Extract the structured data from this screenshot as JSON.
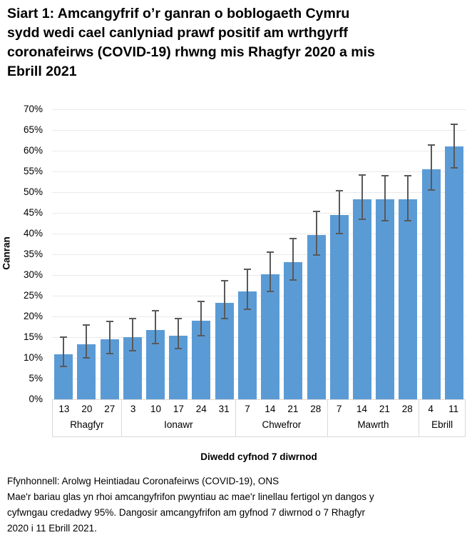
{
  "title": "Siart 1: Amcangyfrif o’r ganran o boblogaeth Cymru\nsydd wedi cael canlyniad prawf positif am wrthgyrff\ncoronafeirws (COVID-19) rhwng mis Rhagfyr 2020 a mis\nEbrill 2021",
  "y_axis": {
    "label": "Canran"
  },
  "x_axis": {
    "title": "Diwedd cyfnod 7 diwrnod"
  },
  "footer": {
    "source": "Ffynhonnell: Arolwg Heintiadau Coronafeirws (COVID-19), ONS",
    "note": "Mae'r bariau glas yn rhoi amcangyfrifon pwyntiau ac mae'r linellau fertigol yn dangos y\ncyfwngau credadwy 95%. Dangosir amcangyfrifon am gyfnod 7 diwrnod o 7 Rhagfyr\n2020 i 11 Ebrill 2021."
  },
  "chart_data": {
    "type": "bar",
    "title": "Siart 1: Amcangyfrif o’r ganran o boblogaeth Cymru sydd wedi cael canlyniad prawf positif am wrthgyrff coronafeirws (COVID-19) rhwng mis Rhagfyr 2020 a mis Ebrill 2021",
    "xlabel": "Diwedd cyfnod 7 diwrnod",
    "ylabel": "Canran",
    "ylim": [
      0,
      70
    ],
    "ytick_step": 5,
    "ytick_suffix": "%",
    "grid": true,
    "legend": "none",
    "bar_color": "#5b9bd5",
    "error_bar_color": "#595959",
    "error_bars": "95% credible intervals",
    "groups": [
      {
        "month": "Rhagfyr",
        "days": [
          "13",
          "20",
          "27"
        ]
      },
      {
        "month": "Ionawr",
        "days": [
          "3",
          "10",
          "17",
          "24",
          "31"
        ]
      },
      {
        "month": "Chwefror",
        "days": [
          "7",
          "14",
          "21",
          "28"
        ]
      },
      {
        "month": "Mawrth",
        "days": [
          "7",
          "14",
          "21",
          "28"
        ]
      },
      {
        "month": "Ebrill",
        "days": [
          "4",
          "11"
        ]
      }
    ],
    "points": [
      {
        "month": "Rhagfyr",
        "day": "13",
        "value": 10.8,
        "ci_low": 8.0,
        "ci_high": 15.0
      },
      {
        "month": "Rhagfyr",
        "day": "20",
        "value": 13.3,
        "ci_low": 10.0,
        "ci_high": 17.9
      },
      {
        "month": "Rhagfyr",
        "day": "27",
        "value": 14.4,
        "ci_low": 11.1,
        "ci_high": 18.8
      },
      {
        "month": "Ionawr",
        "day": "3",
        "value": 15.0,
        "ci_low": 11.8,
        "ci_high": 19.4
      },
      {
        "month": "Ionawr",
        "day": "10",
        "value": 16.8,
        "ci_low": 13.5,
        "ci_high": 21.4
      },
      {
        "month": "Ionawr",
        "day": "17",
        "value": 15.4,
        "ci_low": 12.2,
        "ci_high": 19.5
      },
      {
        "month": "Ionawr",
        "day": "24",
        "value": 18.9,
        "ci_low": 15.3,
        "ci_high": 23.6
      },
      {
        "month": "Ionawr",
        "day": "31",
        "value": 23.3,
        "ci_low": 19.4,
        "ci_high": 28.6
      },
      {
        "month": "Chwefror",
        "day": "7",
        "value": 26.0,
        "ci_low": 21.8,
        "ci_high": 31.4
      },
      {
        "month": "Chwefror",
        "day": "14",
        "value": 30.1,
        "ci_low": 26.0,
        "ci_high": 35.6
      },
      {
        "month": "Chwefror",
        "day": "21",
        "value": 33.1,
        "ci_low": 28.8,
        "ci_high": 38.8
      },
      {
        "month": "Chwefror",
        "day": "28",
        "value": 39.6,
        "ci_low": 34.9,
        "ci_high": 45.4
      },
      {
        "month": "Mawrth",
        "day": "7",
        "value": 44.5,
        "ci_low": 40.0,
        "ci_high": 50.3
      },
      {
        "month": "Mawrth",
        "day": "14",
        "value": 48.3,
        "ci_low": 43.4,
        "ci_high": 54.1
      },
      {
        "month": "Mawrth",
        "day": "21",
        "value": 48.2,
        "ci_low": 43.1,
        "ci_high": 53.9
      },
      {
        "month": "Mawrth",
        "day": "28",
        "value": 48.2,
        "ci_low": 43.1,
        "ci_high": 54.0
      },
      {
        "month": "Ebrill",
        "day": "4",
        "value": 55.5,
        "ci_low": 50.6,
        "ci_high": 61.4
      },
      {
        "month": "Ebrill",
        "day": "11",
        "value": 61.0,
        "ci_low": 55.8,
        "ci_high": 66.4
      }
    ]
  }
}
